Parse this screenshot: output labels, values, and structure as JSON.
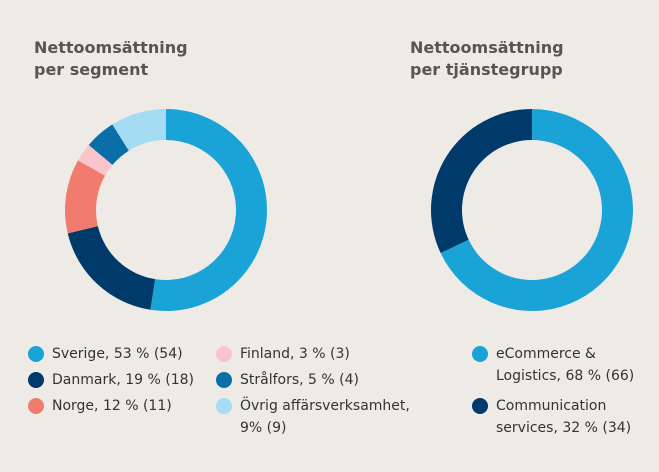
{
  "chart_data": [
    {
      "type": "pie",
      "title": [
        "Nettoomsättning",
        "per segment"
      ],
      "categories": [
        "Sverige, 53 % (54)",
        "Danmark, 19 % (18)",
        "Norge, 12 % (11)",
        "Finland, 3 % (3)",
        "Strålfors, 5 % (4)",
        "Övrig affärsverksamhet, 9% (9)"
      ],
      "values": [
        53,
        19,
        12,
        3,
        5,
        9
      ],
      "colors": [
        "#1aa3d6",
        "#003a6b",
        "#f07b6e",
        "#f9c5cb",
        "#0a6ea8",
        "#a6dcf3"
      ]
    },
    {
      "type": "pie",
      "title": [
        "Nettoomsättning",
        "per tjänstegrupp"
      ],
      "categories": [
        "eCommerce & Logistics, 68 % (66)",
        "Communication services, 32 % (34)"
      ],
      "values": [
        68,
        32
      ],
      "colors": [
        "#1aa3d6",
        "#003a6b"
      ]
    }
  ]
}
